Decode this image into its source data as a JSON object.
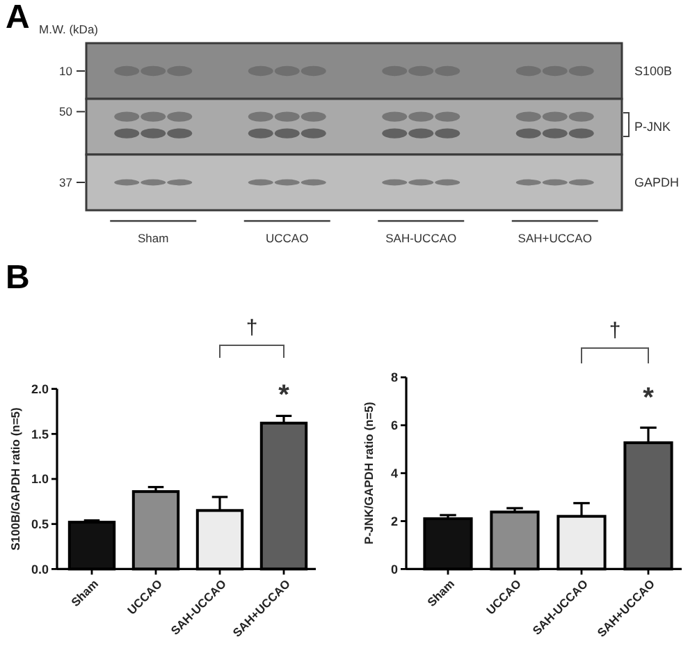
{
  "chart_data": [
    {
      "type": "other",
      "title": "A",
      "ylabel": "M.W. (kDa)",
      "annotations": [
        "10",
        "50",
        "37"
      ],
      "y_categories": [
        "S100B",
        "P-JNK",
        "GAPDH"
      ],
      "categories": [
        "Sham",
        "UCCAO",
        "SAH-UCCAO",
        "SAH+UCCAO"
      ]
    },
    {
      "type": "bar",
      "title": "B",
      "categories": [
        "Sham",
        "UCCAO",
        "SAH-UCCAO",
        "SAH+UCCAO"
      ],
      "values": [
        0.52,
        0.86,
        0.65,
        1.62
      ],
      "errors": [
        0.02,
        0.05,
        0.15,
        0.08
      ],
      "colors": [
        "#111111",
        "#8c8c8c",
        "#ececec",
        "#5e5e5e"
      ],
      "ylabel": "S100B/GAPDH ratio (n=5)",
      "ylim": [
        0,
        2
      ],
      "yticks": [
        {
          "value": 0,
          "label": "0.0"
        },
        {
          "value": 0.5,
          "label": "0.5"
        },
        {
          "value": 1,
          "label": "1.0"
        },
        {
          "value": 1.5,
          "label": "1.5"
        },
        {
          "value": 2,
          "label": "2.0"
        }
      ],
      "annotations": [
        "†",
        "*"
      ]
    },
    {
      "type": "bar",
      "categories": [
        "Sham",
        "UCCAO",
        "SAH-UCCAO",
        "SAH+UCCAO"
      ],
      "values": [
        2.1,
        2.38,
        2.2,
        5.27
      ],
      "errors": [
        0.15,
        0.16,
        0.55,
        0.63
      ],
      "colors": [
        "#111111",
        "#8c8c8c",
        "#ececec",
        "#5e5e5e"
      ],
      "ylabel": "P-JNK/GAPDH ratio (n=5)",
      "ylim": [
        0,
        8
      ],
      "yticks": [
        0,
        2,
        4,
        6,
        8
      ],
      "annotations": [
        "†",
        "*"
      ]
    }
  ]
}
